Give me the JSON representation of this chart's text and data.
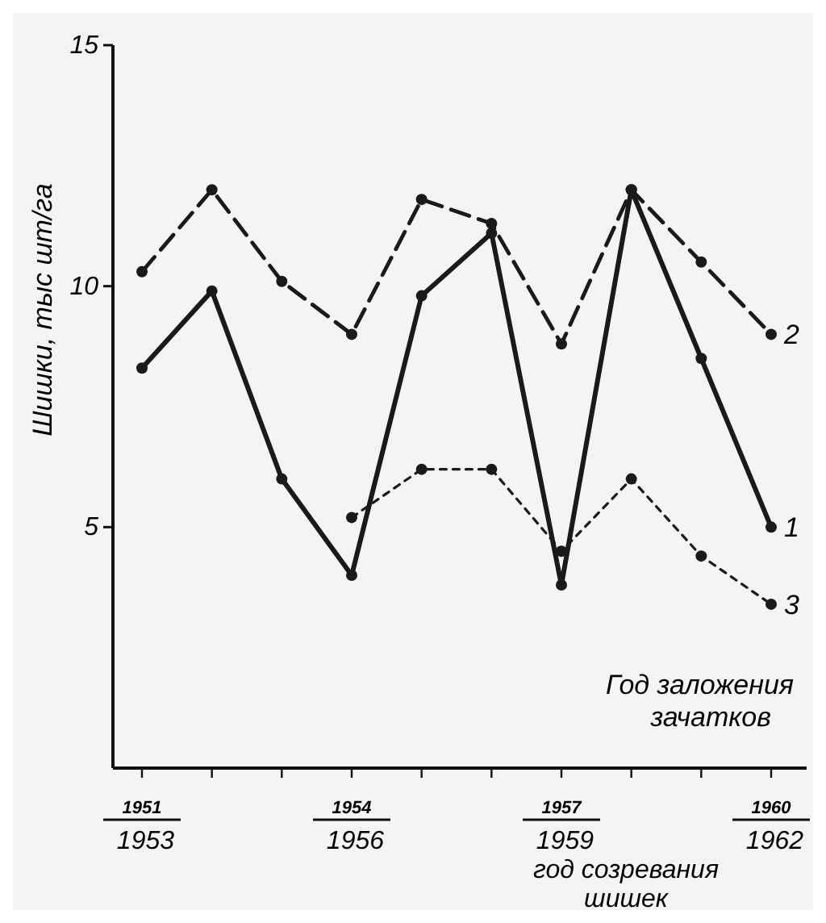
{
  "chart_data": {
    "type": "line",
    "ylabel": "Шишки, тыс шт/га",
    "xlabel": "Год заложения зачатков",
    "annotations": [
      "год созревания шишек"
    ],
    "categories": [
      "1951\n1953",
      null,
      null,
      "1954\n1956",
      null,
      null,
      "1957\n1959",
      null,
      null,
      "1960\n1962"
    ],
    "ylim": [
      0,
      15
    ],
    "yticks": [
      5,
      10,
      15
    ],
    "grid": false,
    "marker": "circle",
    "series": [
      {
        "name": "1",
        "color": "#1a1a1a",
        "line_style": "solid",
        "values": [
          8.3,
          9.9,
          6.0,
          4.0,
          9.8,
          11.1,
          3.8,
          12.0,
          8.5,
          5.0
        ]
      },
      {
        "name": "2",
        "color": "#1a1a1a",
        "line_style": "dashed",
        "values": [
          10.3,
          12.0,
          10.1,
          9.0,
          11.8,
          11.3,
          8.8,
          12.0,
          10.5,
          9.0
        ]
      },
      {
        "name": "3",
        "color": "#1a1a1a",
        "line_style": "dotted",
        "values": [
          null,
          null,
          null,
          5.2,
          6.2,
          6.2,
          4.5,
          6.0,
          4.4,
          3.4
        ]
      }
    ]
  }
}
